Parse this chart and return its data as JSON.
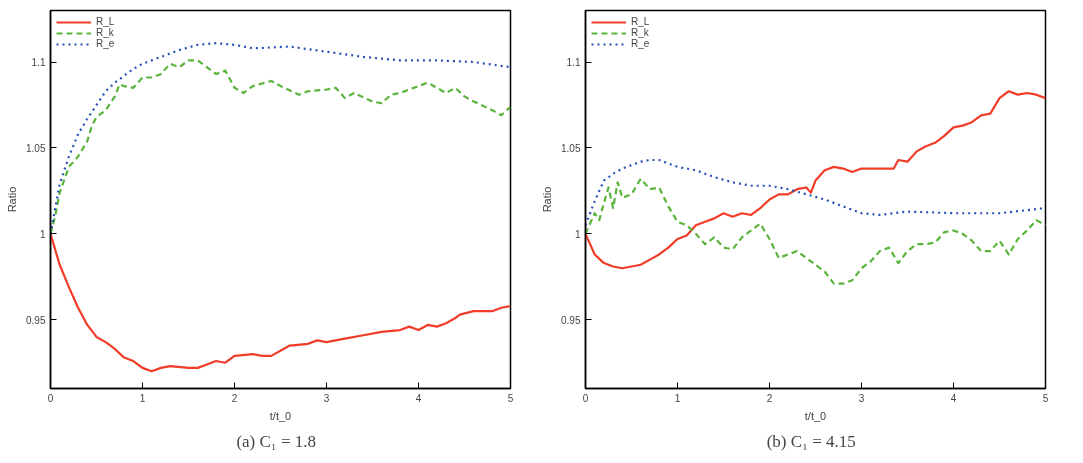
{
  "chart_data": [
    {
      "type": "line",
      "title": "(a)   C₁ = 1.8",
      "xlabel": "t/t_0",
      "ylabel": "Ratio",
      "xlim": [
        0,
        5
      ],
      "ylim": [
        0.91,
        1.13
      ],
      "xticks": [
        0,
        1,
        2,
        3,
        4,
        5
      ],
      "yticks": [
        0.95,
        1,
        1.05,
        1.1
      ],
      "legend": "top left",
      "grid": false,
      "series": [
        {
          "name": "R_L",
          "color": "#f03c28",
          "line_style": "solid",
          "x": [
            0,
            0.1,
            0.2,
            0.3,
            0.4,
            0.5,
            0.6,
            0.7,
            0.8,
            0.9,
            1.0,
            1.1,
            1.2,
            1.3,
            1.5,
            1.6,
            1.7,
            1.8,
            1.9,
            2.0,
            2.2,
            2.3,
            2.4,
            2.6,
            2.8,
            2.9,
            3.0,
            3.2,
            3.4,
            3.6,
            3.8,
            3.9,
            4.0,
            4.1,
            4.2,
            4.3,
            4.4,
            4.45,
            4.6,
            4.8,
            4.9,
            5.0
          ],
          "values": [
            1.0,
            0.982,
            0.969,
            0.957,
            0.947,
            0.94,
            0.937,
            0.933,
            0.928,
            0.926,
            0.922,
            0.92,
            0.922,
            0.923,
            0.922,
            0.922,
            0.924,
            0.926,
            0.925,
            0.929,
            0.93,
            0.929,
            0.929,
            0.935,
            0.936,
            0.938,
            0.937,
            0.939,
            0.941,
            0.943,
            0.944,
            0.946,
            0.944,
            0.947,
            0.946,
            0.948,
            0.951,
            0.953,
            0.955,
            0.955,
            0.957,
            0.958
          ]
        },
        {
          "name": "R_k",
          "color": "#5ab43c",
          "line_style": "dashed",
          "x": [
            0,
            0.05,
            0.1,
            0.2,
            0.3,
            0.4,
            0.45,
            0.5,
            0.6,
            0.7,
            0.75,
            0.8,
            0.9,
            1.0,
            1.1,
            1.2,
            1.3,
            1.4,
            1.5,
            1.6,
            1.7,
            1.8,
            1.9,
            2.0,
            2.1,
            2.2,
            2.4,
            2.5,
            2.7,
            2.8,
            3.0,
            3.1,
            3.2,
            3.3,
            3.5,
            3.6,
            3.7,
            3.8,
            4.0,
            4.1,
            4.3,
            4.4,
            4.5,
            4.6,
            4.8,
            4.9,
            5.0
          ],
          "values": [
            1.0,
            1.01,
            1.024,
            1.039,
            1.045,
            1.054,
            1.063,
            1.068,
            1.072,
            1.08,
            1.087,
            1.086,
            1.085,
            1.091,
            1.091,
            1.093,
            1.099,
            1.097,
            1.101,
            1.101,
            1.097,
            1.093,
            1.095,
            1.085,
            1.082,
            1.086,
            1.089,
            1.086,
            1.081,
            1.083,
            1.084,
            1.085,
            1.079,
            1.082,
            1.077,
            1.076,
            1.081,
            1.082,
            1.086,
            1.088,
            1.082,
            1.085,
            1.08,
            1.077,
            1.072,
            1.069,
            1.074
          ]
        },
        {
          "name": "R_e",
          "color": "#2850b4",
          "line_style": "dotted",
          "x": [
            0,
            0.1,
            0.2,
            0.3,
            0.4,
            0.5,
            0.6,
            0.7,
            0.8,
            0.9,
            1.0,
            1.2,
            1.4,
            1.6,
            1.8,
            2.0,
            2.2,
            2.6,
            3.0,
            3.4,
            3.8,
            4.2,
            4.6,
            5.0
          ],
          "values": [
            1.0,
            1.029,
            1.045,
            1.058,
            1.067,
            1.075,
            1.083,
            1.088,
            1.092,
            1.096,
            1.099,
            1.103,
            1.107,
            1.11,
            1.111,
            1.11,
            1.108,
            1.109,
            1.106,
            1.103,
            1.101,
            1.101,
            1.1,
            1.097
          ]
        }
      ]
    },
    {
      "type": "line",
      "title": "(b)   C₁ = 4.15",
      "xlabel": "t/t_0",
      "ylabel": "Ratio",
      "xlim": [
        0,
        5
      ],
      "ylim": [
        0.91,
        1.13
      ],
      "xticks": [
        0,
        1,
        2,
        3,
        4,
        5
      ],
      "yticks": [
        0.95,
        1,
        1.05,
        1.1
      ],
      "legend": "top left",
      "grid": false,
      "series": [
        {
          "name": "R_L",
          "color": "#f03c28",
          "line_style": "solid",
          "x": [
            0,
            0.05,
            0.1,
            0.2,
            0.3,
            0.4,
            0.5,
            0.6,
            0.7,
            0.8,
            0.9,
            1.0,
            1.1,
            1.2,
            1.3,
            1.4,
            1.5,
            1.6,
            1.7,
            1.8,
            1.9,
            2.0,
            2.1,
            2.2,
            2.3,
            2.4,
            2.45,
            2.5,
            2.6,
            2.7,
            2.8,
            2.9,
            3.0,
            3.2,
            3.35,
            3.4,
            3.5,
            3.6,
            3.7,
            3.8,
            3.9,
            4.0,
            4.1,
            4.2,
            4.3,
            4.4,
            4.5,
            4.6,
            4.7,
            4.8,
            4.9,
            5.0
          ],
          "values": [
            1.0,
            0.994,
            0.988,
            0.983,
            0.981,
            0.98,
            0.981,
            0.982,
            0.985,
            0.988,
            0.992,
            0.997,
            0.999,
            1.005,
            1.007,
            1.009,
            1.012,
            1.01,
            1.012,
            1.011,
            1.015,
            1.02,
            1.023,
            1.023,
            1.026,
            1.027,
            1.024,
            1.031,
            1.037,
            1.039,
            1.038,
            1.036,
            1.038,
            1.038,
            1.038,
            1.043,
            1.042,
            1.048,
            1.051,
            1.053,
            1.057,
            1.062,
            1.063,
            1.065,
            1.069,
            1.07,
            1.079,
            1.083,
            1.081,
            1.082,
            1.081,
            1.079
          ]
        },
        {
          "name": "R_k",
          "color": "#5ab43c",
          "line_style": "dashed",
          "x": [
            0,
            0.05,
            0.1,
            0.15,
            0.2,
            0.25,
            0.3,
            0.35,
            0.4,
            0.5,
            0.6,
            0.7,
            0.8,
            0.9,
            1.0,
            1.1,
            1.2,
            1.3,
            1.4,
            1.5,
            1.6,
            1.7,
            1.8,
            1.9,
            2.0,
            2.1,
            2.2,
            2.3,
            2.4,
            2.5,
            2.6,
            2.7,
            2.8,
            2.9,
            3.0,
            3.1,
            3.2,
            3.3,
            3.4,
            3.5,
            3.6,
            3.7,
            3.8,
            3.9,
            4.0,
            4.1,
            4.2,
            4.3,
            4.4,
            4.5,
            4.6,
            4.7,
            4.8,
            4.9,
            5.0
          ],
          "values": [
            1.0,
            1.006,
            1.012,
            1.008,
            1.018,
            1.027,
            1.015,
            1.03,
            1.021,
            1.023,
            1.032,
            1.026,
            1.027,
            1.016,
            1.007,
            1.005,
            1.0,
            0.994,
            0.998,
            0.992,
            0.991,
            0.998,
            1.002,
            1.006,
            0.997,
            0.986,
            0.988,
            0.99,
            0.986,
            0.982,
            0.978,
            0.971,
            0.971,
            0.973,
            0.98,
            0.984,
            0.99,
            0.992,
            0.983,
            0.99,
            0.994,
            0.994,
            0.995,
            1.001,
            1.002,
            1.0,
            0.996,
            0.99,
            0.99,
            0.996,
            0.988,
            0.997,
            1.002,
            1.008,
            1.005
          ]
        },
        {
          "name": "R_e",
          "color": "#2850b4",
          "line_style": "dotted",
          "x": [
            0,
            0.05,
            0.1,
            0.2,
            0.3,
            0.4,
            0.5,
            0.6,
            0.7,
            0.8,
            0.9,
            1.0,
            1.2,
            1.4,
            1.6,
            1.8,
            2.0,
            2.2,
            2.4,
            2.6,
            2.8,
            3.0,
            3.2,
            3.5,
            4.0,
            4.5,
            5.0
          ],
          "values": [
            1.005,
            1.012,
            1.019,
            1.031,
            1.035,
            1.038,
            1.04,
            1.042,
            1.043,
            1.043,
            1.041,
            1.039,
            1.037,
            1.033,
            1.03,
            1.028,
            1.028,
            1.026,
            1.023,
            1.02,
            1.016,
            1.012,
            1.011,
            1.013,
            1.012,
            1.012,
            1.015
          ]
        }
      ]
    }
  ]
}
